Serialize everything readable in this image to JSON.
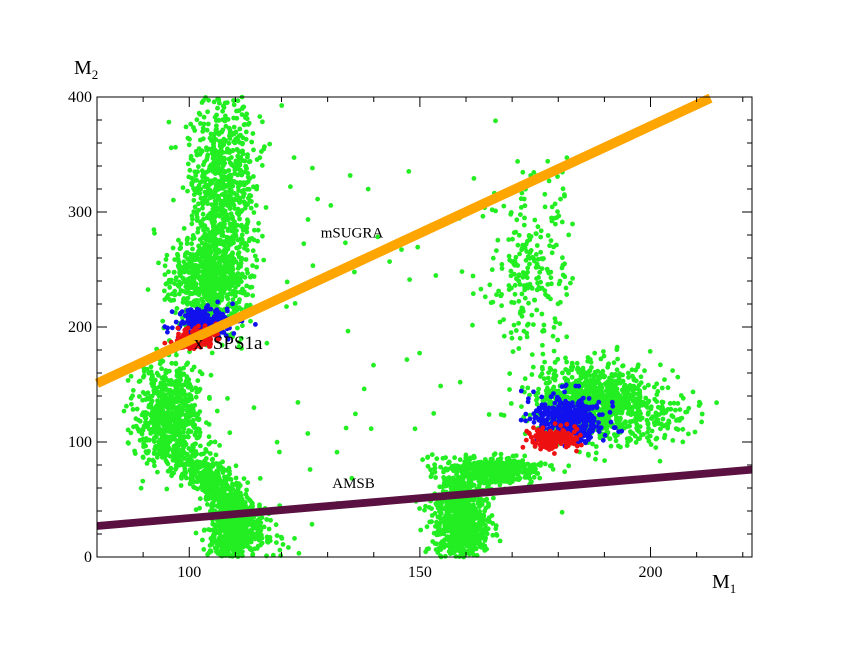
{
  "chart_data": {
    "type": "scatter",
    "title": "",
    "xlabel": "M",
    "xlabel_sub": "1",
    "ylabel": "M",
    "ylabel_sub": "2",
    "xlim": [
      80,
      222
    ],
    "ylim": [
      0,
      400
    ],
    "x_ticks": [
      100,
      150,
      200
    ],
    "y_ticks": [
      0,
      100,
      200,
      300,
      400
    ],
    "grid": false,
    "colors": {
      "green": "#22ee22",
      "blue": "#1111ee",
      "red": "#ee1111",
      "msugra": "#ffa500",
      "amsb": "#5a1040"
    },
    "lines": [
      {
        "label": "mSUGRA",
        "color": "#ffa500",
        "x": [
          80,
          213
        ],
        "y": [
          151,
          399
        ],
        "width": 3.2
      },
      {
        "label": "AMSB",
        "color": "#5a1040",
        "x": [
          80,
          222
        ],
        "y": [
          27,
          76
        ],
        "width": 2.6
      }
    ],
    "clusters": [
      {
        "color": "green",
        "n": 900,
        "center": [
          107.0,
          310.0
        ],
        "spread": [
          3.8,
          50.0
        ],
        "tilt": 0.0
      },
      {
        "color": "green",
        "n": 600,
        "center": [
          104.0,
          240.0
        ],
        "spread": [
          4.0,
          20.0
        ],
        "tilt": 0.0
      },
      {
        "color": "green",
        "n": 650,
        "center": [
          96.0,
          125.0
        ],
        "spread": [
          3.5,
          22.0
        ],
        "tilt": 0.0
      },
      {
        "color": "green",
        "n": 650,
        "center": [
          106.0,
          60.0
        ],
        "spread": [
          3.0,
          28.0
        ],
        "tilt": 2.2
      },
      {
        "color": "green",
        "n": 400,
        "center": [
          109.0,
          18.0
        ],
        "spread": [
          2.2,
          14.0
        ],
        "tilt": 0.0
      },
      {
        "color": "green",
        "n": 900,
        "center": [
          159.0,
          30.0
        ],
        "spread": [
          2.8,
          18.0
        ],
        "tilt": 0.0
      },
      {
        "color": "green",
        "n": 500,
        "center": [
          166.0,
          75.0
        ],
        "spread": [
          5.0,
          6.0
        ],
        "tilt": 0.6
      },
      {
        "color": "green",
        "n": 900,
        "center": [
          188.0,
          135.0
        ],
        "spread": [
          6.5,
          16.0
        ],
        "tilt": 0.0
      },
      {
        "color": "green",
        "n": 250,
        "center": [
          174.0,
          250.0
        ],
        "spread": [
          4.5,
          45.0
        ],
        "tilt": 0.0
      },
      {
        "color": "green",
        "n": 120,
        "center": [
          200.0,
          120.0
        ],
        "spread": [
          6.0,
          10.0
        ],
        "tilt": 0.0
      },
      {
        "color": "green",
        "n": 70,
        "center": [
          135.0,
          200.0
        ],
        "spread": [
          18.0,
          110.0
        ],
        "tilt": 0.0
      },
      {
        "color": "blue",
        "n": 260,
        "center": [
          103.0,
          205.0
        ],
        "spread": [
          3.0,
          6.5
        ],
        "tilt": 0.0
      },
      {
        "color": "red",
        "n": 150,
        "center": [
          101.5,
          190.0
        ],
        "spread": [
          2.2,
          4.5
        ],
        "tilt": 0.0
      },
      {
        "color": "blue",
        "n": 450,
        "center": [
          182.0,
          120.0
        ],
        "spread": [
          3.5,
          9.0
        ],
        "tilt": 0.0
      },
      {
        "color": "red",
        "n": 200,
        "center": [
          179.0,
          103.0
        ],
        "spread": [
          2.6,
          4.0
        ],
        "tilt": 0.0
      }
    ],
    "annotations": [
      {
        "text": "mSUGRA",
        "x": 128.5,
        "y": 278,
        "style": "small"
      },
      {
        "text": "x  SPS1a",
        "x": 101.0,
        "y": 181,
        "style": "big"
      },
      {
        "text": "AMSB",
        "x": 131.0,
        "y": 60,
        "style": "small"
      }
    ]
  }
}
